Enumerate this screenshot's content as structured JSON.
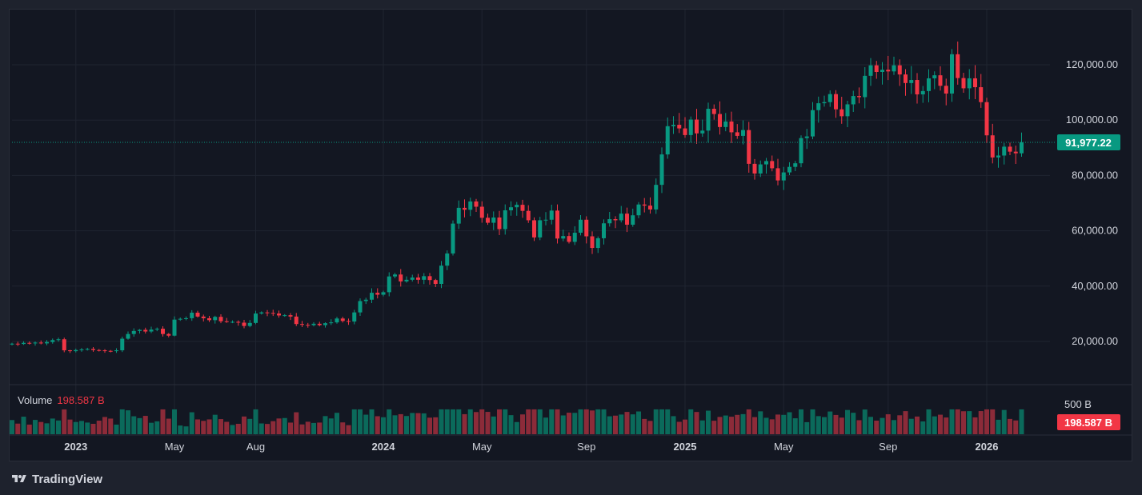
{
  "brand": {
    "name": "TradingView",
    "icon": "tradingview-logo-icon"
  },
  "volume_legend": {
    "label": "Volume",
    "value": "198.587 B"
  },
  "current_price": {
    "label": "91,977.22",
    "value": 91977.22
  },
  "volume_badge": {
    "label": "198.587 B"
  },
  "colors": {
    "background": "#131722",
    "outer": "#1e222d",
    "grid": "#1f2430",
    "up": "#089981",
    "down": "#f23645",
    "up_volume": "#0b6a5b",
    "down_volume": "#8c2b39",
    "text": "#d1d4dc"
  },
  "chart_data": {
    "type": "candlestick",
    "interval": "weekly",
    "y_ticks": [
      {
        "value": 120000,
        "label": "120,000.00"
      },
      {
        "value": 100000,
        "label": "100,000.00"
      },
      {
        "value": 80000,
        "label": "80,000.00"
      },
      {
        "value": 60000,
        "label": "60,000.00"
      },
      {
        "value": 40000,
        "label": "40,000.00"
      },
      {
        "value": 20000,
        "label": "20,000.00"
      }
    ],
    "volume_ticks": [
      {
        "value": 500,
        "label": "500 B"
      }
    ],
    "x_ticks": [
      {
        "label": "2023",
        "bold": true,
        "index": 11
      },
      {
        "label": "May",
        "bold": false,
        "index": 28
      },
      {
        "label": "Aug",
        "bold": false,
        "index": 42
      },
      {
        "label": "2024",
        "bold": true,
        "index": 64
      },
      {
        "label": "May",
        "bold": false,
        "index": 81
      },
      {
        "label": "Sep",
        "bold": false,
        "index": 99
      },
      {
        "label": "2025",
        "bold": true,
        "index": 116
      },
      {
        "label": "May",
        "bold": false,
        "index": 133
      },
      {
        "label": "Sep",
        "bold": false,
        "index": 151
      },
      {
        "label": "2026",
        "bold": true,
        "index": 168
      }
    ],
    "closes": [
      19200,
      19100,
      19500,
      19300,
      19600,
      19300,
      19800,
      20500,
      20800,
      16800,
      16500,
      16900,
      17100,
      17300,
      16900,
      16800,
      16600,
      16500,
      16800,
      21000,
      22700,
      23800,
      24200,
      23600,
      24300,
      24600,
      22700,
      22100,
      27900,
      28200,
      28400,
      30400,
      29000,
      28400,
      27700,
      28900,
      27300,
      27000,
      27100,
      26800,
      25600,
      26700,
      30100,
      30500,
      30300,
      30100,
      29400,
      29500,
      29000,
      26300,
      26000,
      25900,
      26400,
      25900,
      26600,
      26900,
      28300,
      27400,
      27200,
      30500,
      34600,
      35100,
      37600,
      36900,
      37800,
      43500,
      44200,
      41700,
      42300,
      43100,
      42300,
      43600,
      42200,
      40800,
      47400,
      51800,
      62600,
      68300,
      67600,
      70600,
      68700,
      64700,
      62900,
      64800,
      60600,
      67400,
      68500,
      69400,
      67200,
      63800,
      57600,
      63800,
      64000,
      67300,
      57200,
      58100,
      56000,
      59300,
      64000,
      58000,
      53800,
      57300,
      62700,
      64200,
      63800,
      66200,
      62200,
      65600,
      69500,
      69100,
      67700,
      76600,
      87600,
      97800,
      98300,
      97000,
      94600,
      100200,
      95200,
      96200,
      104100,
      102200,
      97500,
      99500,
      95600,
      94300,
      96400,
      84200,
      80700,
      84000,
      85200,
      82600,
      78200,
      81100,
      83100,
      84400,
      93500,
      94100,
      103600,
      106100,
      106500,
      109400,
      103900,
      101400,
      105700,
      108700,
      108300,
      116000,
      119800,
      117400,
      118200,
      117600,
      119800,
      116500,
      113400,
      114500,
      109300,
      110500,
      115100,
      116200,
      112400,
      109600,
      123800,
      115200,
      111500,
      115100,
      111900,
      106500,
      94500,
      86500,
      87200,
      90400,
      88600,
      88000,
      91977
    ]
  }
}
